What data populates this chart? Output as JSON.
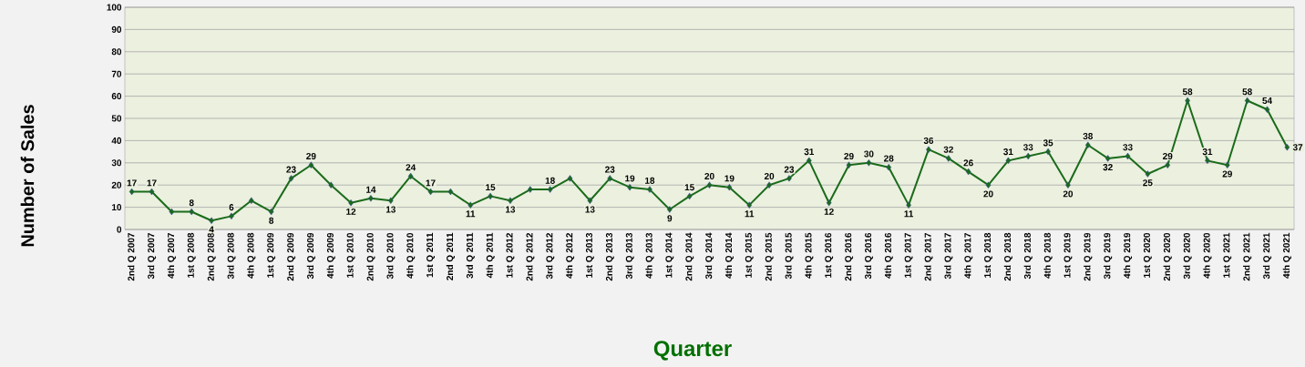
{
  "chart_data": {
    "type": "line",
    "xlabel": "Quarter",
    "ylabel": "Number of Sales",
    "categories": [
      "2nd Q 2007",
      "3rd Q 2007",
      "4th Q 2007",
      "1st Q 2008",
      "2nd Q 2008",
      "3rd Q 2008",
      "4th Q 2008",
      "1st Q 2009",
      "2nd Q 2009",
      "3rd Q 2009",
      "4th Q 2009",
      "1st Q 2010",
      "2nd Q 2010",
      "3rd Q 2010",
      "4th Q 2010",
      "1st Q 2011",
      "2nd Q 2011",
      "3rd Q 2011",
      "4th Q 2011",
      "1st Q 2012",
      "2nd Q 2012",
      "3rd Q 2012",
      "4th Q 2012",
      "1st Q 2013",
      "2nd Q 2013",
      "3rd Q 2013",
      "4th Q 2013",
      "1st Q 2014",
      "2nd Q 2014",
      "3rd Q 2014",
      "4th Q 2014",
      "1st Q 2015",
      "2nd Q 2015",
      "3rd Q 2015",
      "4th Q 2015",
      "1st Q 2016",
      "2nd Q 2016",
      "3rd Q 2016",
      "4th Q 2016",
      "1st Q 2017",
      "2nd Q 2017",
      "3rd Q 2017",
      "4th Q 2017",
      "1st Q 2018",
      "2nd Q 2018",
      "3rd Q 2018",
      "4th Q 2018",
      "1st Q 2019",
      "2nd Q 2019",
      "3rd Q 2019",
      "4th Q 2019",
      "1st Q 2020",
      "2nd Q 2020",
      "3rd Q 2020",
      "4th Q 2020",
      "1st Q 2021",
      "2nd Q 2021",
      "3rd Q 2021",
      "4th Q 2021"
    ],
    "values": [
      17,
      17,
      8,
      8,
      4,
      6,
      13,
      8,
      23,
      29,
      20,
      12,
      14,
      13,
      24,
      17,
      17,
      11,
      15,
      13,
      18,
      18,
      23,
      13,
      23,
      19,
      18,
      9,
      15,
      20,
      19,
      11,
      20,
      23,
      31,
      12,
      29,
      30,
      28,
      11,
      36,
      32,
      26,
      20,
      31,
      33,
      35,
      20,
      38,
      32,
      33,
      25,
      29,
      58,
      31,
      29,
      58,
      54,
      37
    ],
    "value_labels": [
      "17",
      "17",
      null,
      "8",
      "4",
      "6",
      null,
      "8",
      "23",
      "29",
      null,
      "12",
      "14",
      "13",
      "24",
      "17",
      null,
      "11",
      "15",
      "13",
      null,
      "18",
      null,
      "13",
      "23",
      "19",
      "18",
      "9",
      "15",
      "20",
      "19",
      "11",
      "20",
      "23",
      "31",
      "12",
      "29",
      "30",
      "28",
      "11",
      "36",
      "32",
      "26",
      "20",
      "31",
      "33",
      "35",
      "20",
      "38",
      "32",
      "33",
      "25",
      "29",
      "58",
      "31",
      "29",
      "58",
      "54",
      "37"
    ],
    "color": "#1a6b1a",
    "marker": "diamond",
    "ylim": [
      0,
      100
    ],
    "yticks": [
      0,
      10,
      20,
      30,
      40,
      50,
      60,
      70,
      80,
      90,
      100
    ],
    "grid": "y"
  }
}
